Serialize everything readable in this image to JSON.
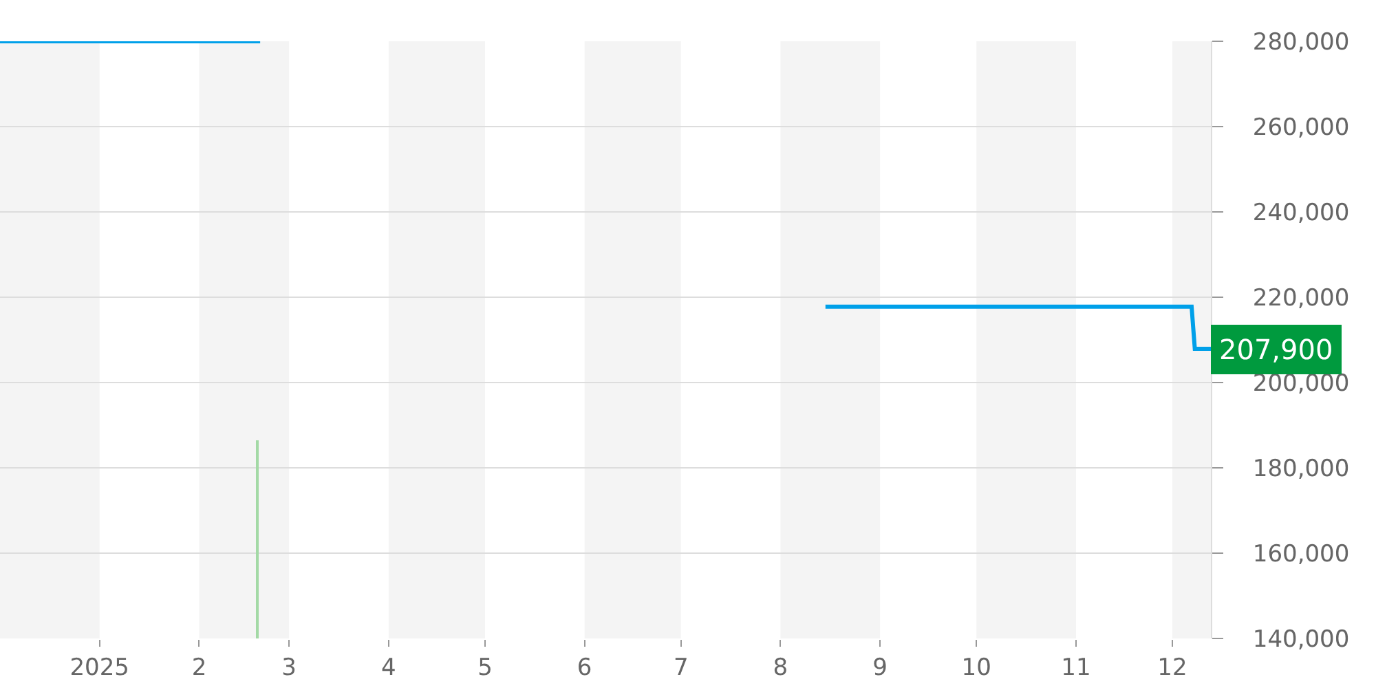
{
  "chart_data": {
    "type": "line",
    "series": [
      {
        "color": "#00a0e9",
        "x": [
          "2024-12-01",
          "2025-02-20"
        ],
        "values": [
          280000,
          280000
        ]
      },
      {
        "color": "#00a0e9",
        "x": [
          "2025-08-15",
          "2025-12-07",
          "2025-12-08",
          "2025-12-13"
        ],
        "values": [
          217800,
          217800,
          207900,
          207900
        ]
      },
      {
        "type": "bar",
        "color": "#a3d9a5",
        "x": [
          "2025-02-19"
        ],
        "values": [
          186500
        ]
      }
    ],
    "xlim": [
      "2024-12-01",
      "2025-12-13"
    ],
    "xticks": [
      {
        "value": "2025-01-01",
        "label": "2025"
      },
      {
        "value": "2025-02-01",
        "label": "2"
      },
      {
        "value": "2025-03-01",
        "label": "3"
      },
      {
        "value": "2025-04-01",
        "label": "4"
      },
      {
        "value": "2025-05-01",
        "label": "5"
      },
      {
        "value": "2025-06-01",
        "label": "6"
      },
      {
        "value": "2025-07-01",
        "label": "7"
      },
      {
        "value": "2025-08-01",
        "label": "8"
      },
      {
        "value": "2025-09-01",
        "label": "9"
      },
      {
        "value": "2025-10-01",
        "label": "10"
      },
      {
        "value": "2025-11-01",
        "label": "11"
      },
      {
        "value": "2025-12-01",
        "label": "12"
      }
    ],
    "ylim": [
      140000,
      280000
    ],
    "yticks": [
      {
        "value": 140000,
        "label": "140,000"
      },
      {
        "value": 160000,
        "label": "160,000"
      },
      {
        "value": 180000,
        "label": "180,000"
      },
      {
        "value": 200000,
        "label": "200,000"
      },
      {
        "value": 220000,
        "label": "220,000"
      },
      {
        "value": 240000,
        "label": "240,000"
      },
      {
        "value": 260000,
        "label": "260,000"
      },
      {
        "value": 280000,
        "label": "280,000"
      }
    ],
    "grid": "y",
    "bands": [
      {
        "axis": "x",
        "from": "2024-12-01",
        "to": "2025-01-01",
        "color": "#f4f4f4"
      },
      {
        "axis": "x",
        "from": "2025-02-01",
        "to": "2025-03-01",
        "color": "#f4f4f4"
      },
      {
        "axis": "x",
        "from": "2025-04-01",
        "to": "2025-05-01",
        "color": "#f4f4f4"
      },
      {
        "axis": "x",
        "from": "2025-06-01",
        "to": "2025-07-01",
        "color": "#f4f4f4"
      },
      {
        "axis": "x",
        "from": "2025-08-01",
        "to": "2025-09-01",
        "color": "#f4f4f4"
      },
      {
        "axis": "x",
        "from": "2025-10-01",
        "to": "2025-11-01",
        "color": "#f4f4f4"
      },
      {
        "axis": "x",
        "from": "2025-12-01",
        "to": "2025-12-13",
        "color": "#f4f4f4"
      }
    ],
    "annotations": [
      {
        "text": "207,900",
        "x": "2025-12-13",
        "y": 207900
      }
    ]
  }
}
